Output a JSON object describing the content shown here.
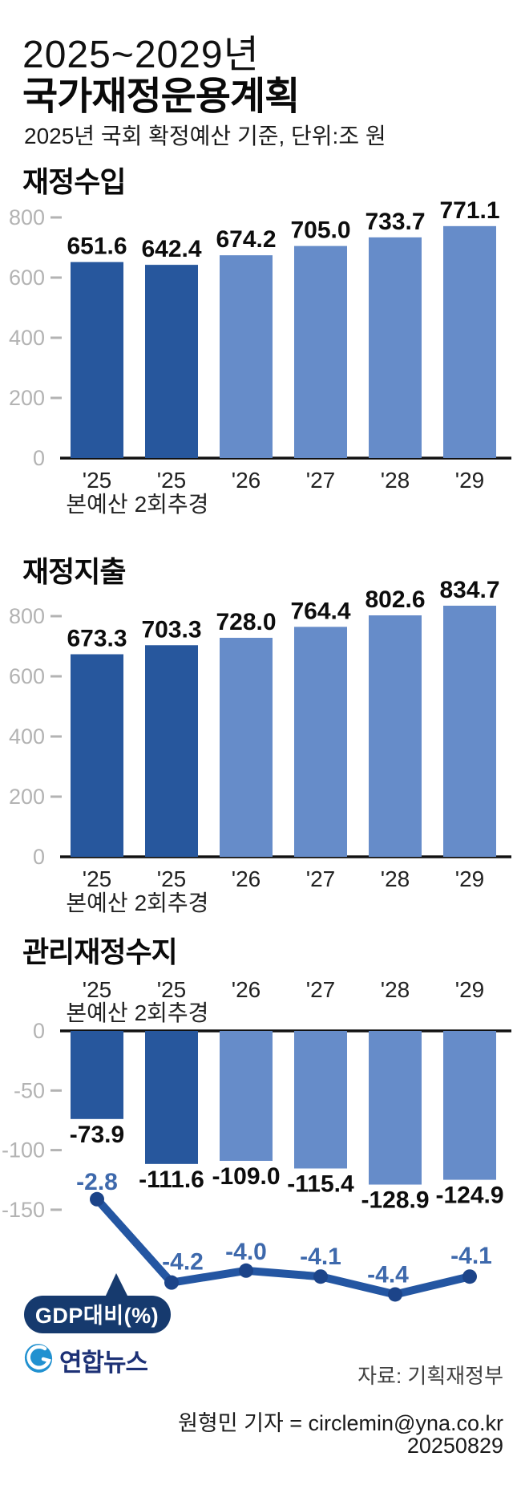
{
  "header": {
    "title_line1": "2025~2029년",
    "title_line2": "국가재정운용계획",
    "subtitle": "2025년 국회 확정예산 기준, 단위:조 원"
  },
  "colors": {
    "bar_dark_blue": "#27579d",
    "bar_light_blue": "#668cc9",
    "line_navy": "#2456a2",
    "dot_navy": "#1c4489",
    "line_label_blue": "#3e69ac",
    "pill_navy": "#163a6e",
    "tick_gray": "#b3b3b3",
    "axis_black": "#111111",
    "logo_circle_blue": "#2191d0",
    "logo_text_navy": "#1d3176"
  },
  "category_lines": [
    [
      "'25",
      "본예산"
    ],
    [
      "'25",
      "2회추경"
    ],
    [
      "'26"
    ],
    [
      "'27"
    ],
    [
      "'28"
    ],
    [
      "'29"
    ]
  ],
  "chart_data": [
    {
      "type": "bar",
      "title": "재정수입",
      "unit": "조 원",
      "categories": [
        "'25 본예산",
        "'25 2회추경",
        "'26",
        "'27",
        "'28",
        "'29"
      ],
      "values": [
        651.6,
        642.4,
        674.2,
        705.0,
        733.7,
        771.1
      ],
      "labels": [
        "651.6",
        "642.4",
        "674.2",
        "705.0",
        "733.7",
        "771.1"
      ],
      "yticks": [
        800,
        600,
        400,
        200,
        0
      ],
      "ylim": [
        0,
        870
      ],
      "grid": false,
      "note": "first two bars dark blue, rest light blue"
    },
    {
      "type": "bar",
      "title": "재정지출",
      "unit": "조 원",
      "categories": [
        "'25 본예산",
        "'25 2회추경",
        "'26",
        "'27",
        "'28",
        "'29"
      ],
      "values": [
        673.3,
        703.3,
        728.0,
        764.4,
        802.6,
        834.7
      ],
      "labels": [
        "673.3",
        "703.3",
        "728.0",
        "764.4",
        "802.6",
        "834.7"
      ],
      "yticks": [
        800,
        600,
        400,
        200,
        0
      ],
      "ylim": [
        0,
        870
      ],
      "grid": false,
      "note": "first two bars dark blue, rest light blue"
    },
    {
      "type": "bar+line",
      "title": "관리재정수지",
      "unit": "조 원",
      "categories": [
        "'25 본예산",
        "'25 2회추경",
        "'26",
        "'27",
        "'28",
        "'29"
      ],
      "bar_values": [
        -73.9,
        -111.6,
        -109.0,
        -115.4,
        -128.9,
        -124.9
      ],
      "bar_labels": [
        "-73.9",
        "-111.6",
        "-109.0",
        "-115.4",
        "-128.9",
        "-124.9"
      ],
      "yticks": [
        0,
        -50,
        -100,
        -150
      ],
      "ylim": [
        -160,
        0
      ],
      "grid": false,
      "line_series": {
        "name": "GDP대비(%)",
        "values": [
          -2.8,
          -4.2,
          -4.0,
          -4.1,
          -4.4,
          -4.1
        ],
        "labels": [
          "-2.8",
          "-4.2",
          "-4.0",
          "-4.1",
          "-4.4",
          "-4.1"
        ]
      }
    }
  ],
  "footer": {
    "logo_text": "연합뉴스",
    "source": "자료: 기획재정부",
    "byline": "원형민 기자 = circlemin@yna.co.kr",
    "date": "20250829"
  }
}
